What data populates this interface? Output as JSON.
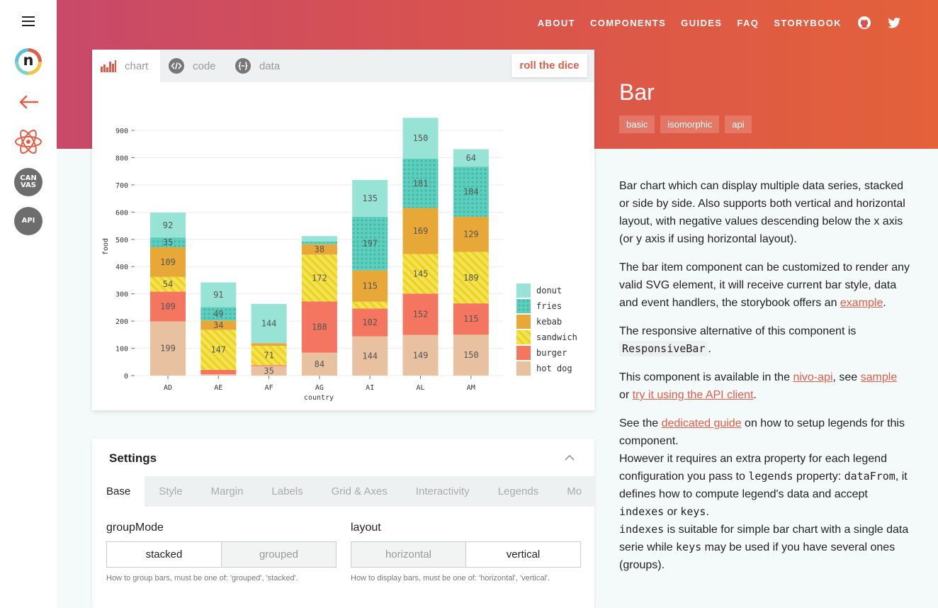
{
  "header": {
    "nav": [
      "ABOUT",
      "COMPONENTS",
      "GUIDES",
      "FAQ",
      "STORYBOOK"
    ],
    "icons": [
      "github-icon",
      "twitter-icon"
    ],
    "title": "Bar",
    "tags": [
      "basic",
      "isomorphic",
      "api"
    ]
  },
  "sidebar": {
    "logo_letter": "n",
    "canvas_badge": "CAN\nVAS",
    "api_badge": "API"
  },
  "chart_panel": {
    "tabs": [
      "chart",
      "code",
      "data"
    ],
    "active_tab": "chart",
    "roll_button": "roll the dice"
  },
  "chart_data": {
    "type": "bar",
    "stacked": true,
    "categories": [
      "AD",
      "AE",
      "AF",
      "AG",
      "AI",
      "AL",
      "AM"
    ],
    "xlabel": "country",
    "ylabel": "food",
    "ylim": [
      0,
      900
    ],
    "yticks": [
      0,
      100,
      200,
      300,
      400,
      500,
      600,
      700,
      800,
      900
    ],
    "grid": true,
    "legend_position": "bottom-right",
    "series": [
      {
        "name": "hot dog",
        "color": "#e8c1a0",
        "pattern": "none",
        "values": [
          199,
          5,
          35,
          84,
          144,
          149,
          150
        ]
      },
      {
        "name": "burger",
        "color": "#f47560",
        "pattern": "none",
        "values": [
          109,
          16,
          3,
          188,
          102,
          152,
          115
        ]
      },
      {
        "name": "sandwich",
        "color": "#f1e15b",
        "pattern": "lines",
        "values": [
          54,
          147,
          71,
          172,
          25,
          145,
          189
        ]
      },
      {
        "name": "kebab",
        "color": "#e8a838",
        "pattern": "none",
        "values": [
          109,
          34,
          10,
          38,
          115,
          169,
          129
        ]
      },
      {
        "name": "fries",
        "color": "#61cdbb",
        "pattern": "dots",
        "values": [
          35,
          49,
          0,
          10,
          197,
          181,
          184
        ]
      },
      {
        "name": "donut",
        "color": "#97e3d5",
        "pattern": "none",
        "values": [
          92,
          91,
          144,
          20,
          135,
          150,
          64
        ]
      }
    ],
    "data_labels": [
      {
        "category": "AD",
        "labels": [
          "199",
          "109",
          "54",
          "109",
          "35",
          "92"
        ]
      },
      {
        "category": "AE",
        "labels": [
          "",
          "",
          "147",
          "34",
          "49",
          "91"
        ]
      },
      {
        "category": "AF",
        "labels": [
          "35",
          "",
          "71",
          "",
          "",
          "144"
        ]
      },
      {
        "category": "AG",
        "labels": [
          "84",
          "188",
          "172",
          "38",
          "",
          ""
        ]
      },
      {
        "category": "AI",
        "labels": [
          "144",
          "102",
          "",
          "115",
          "197",
          "135"
        ]
      },
      {
        "category": "AL",
        "labels": [
          "149",
          "152",
          "145",
          "169",
          "181",
          "150"
        ]
      },
      {
        "category": "AM",
        "labels": [
          "150",
          "115",
          "189",
          "129",
          "184",
          "64"
        ]
      }
    ],
    "legend_order": [
      "donut",
      "fries",
      "kebab",
      "sandwich",
      "burger",
      "hot dog"
    ]
  },
  "settings": {
    "title": "Settings",
    "tabs": [
      "Base",
      "Style",
      "Margin",
      "Labels",
      "Grid & Axes",
      "Interactivity",
      "Legends",
      "Mo"
    ],
    "active_tab": "Base",
    "groupMode": {
      "label": "groupMode",
      "options": [
        "stacked",
        "grouped"
      ],
      "selected": "stacked",
      "help": "How to group bars, must be one of: 'grouped', 'stacked'."
    },
    "layout": {
      "label": "layout",
      "options": [
        "horizontal",
        "vertical"
      ],
      "selected": "vertical",
      "help": "How to display bars, must be one of: 'horizontal', 'vertical'."
    }
  },
  "description": {
    "p1": "Bar chart which can display multiple data series, stacked or side by side. Also supports both vertical and horizontal layout, with negative values descending below the x axis (or y axis if using horizontal layout).",
    "p2_text": "The bar item component can be customized to render any valid SVG element, it will receive current bar style, data and event handlers, the storybook offers an ",
    "p2_link": "example",
    "p2_end": ".",
    "p3_text": "The responsive alternative of this component is ",
    "p3_code": "ResponsiveBar",
    "p3_end": ".",
    "p4_a": "This component is available in the ",
    "p4_link1": "nivo-api",
    "p4_b": ", see ",
    "p4_link2": "sample",
    "p4_c": "or ",
    "p4_link3": "try it using the API client",
    "p4_d": ".",
    "p5_a": "See the ",
    "p5_link": "dedicated guide",
    "p5_b": " on how to setup legends for this component.",
    "p6_a": "However it requires an extra property for each legend configuration you pass to ",
    "p6_code1": "legends",
    "p6_b": " property: ",
    "p6_code2": "dataFrom",
    "p6_c": ", it defines how to compute legend's data and accept ",
    "p6_code3": "indexes",
    "p6_d": " or ",
    "p6_code4": "keys",
    "p6_e": ".",
    "p7_code1": "indexes",
    "p7_a": " is suitable for simple bar chart with a single data serie while ",
    "p7_code2": "keys",
    "p7_b": " may be used if you have several ones (groups)."
  }
}
